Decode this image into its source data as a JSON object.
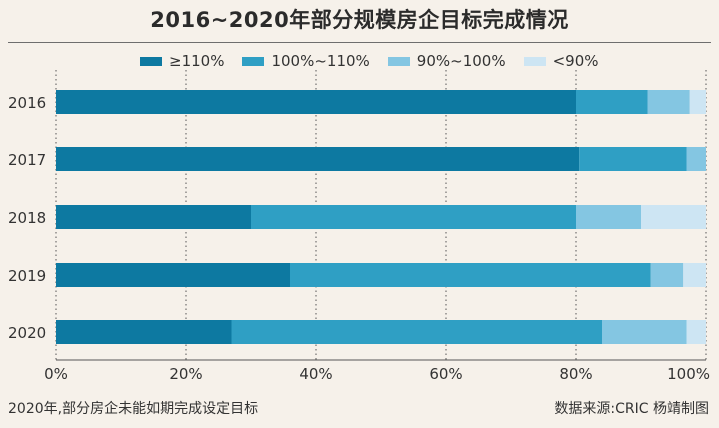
{
  "title": "2016~2020年部分规模房企目标完成情况",
  "caption": "2020年,部分房企未能如期完成设定目标",
  "source": "数据来源:CRIC    杨靖制图",
  "colors": {
    "background": "#f6f1ea",
    "series": [
      "#0d79a1",
      "#2f9fc4",
      "#84c6e2",
      "#cde5f3"
    ]
  },
  "chart_data": {
    "type": "bar",
    "orientation": "horizontal",
    "stacked": true,
    "categories": [
      "2016",
      "2017",
      "2018",
      "2019",
      "2020"
    ],
    "series": [
      {
        "name": "≥110%",
        "values": [
          80,
          80.5,
          30,
          36,
          27
        ]
      },
      {
        "name": "100%~110%",
        "values": [
          11,
          16.5,
          50,
          55.5,
          57
        ]
      },
      {
        "name": "90%~100%",
        "values": [
          6.5,
          3,
          10,
          5,
          13
        ]
      },
      {
        "name": "<90%",
        "values": [
          2.5,
          0,
          10,
          3.5,
          3
        ]
      }
    ],
    "xlim": [
      0,
      100
    ],
    "xticks": [
      "0%",
      "20%",
      "40%",
      "60%",
      "80%",
      "100%"
    ],
    "grid": true,
    "legend": "top"
  }
}
